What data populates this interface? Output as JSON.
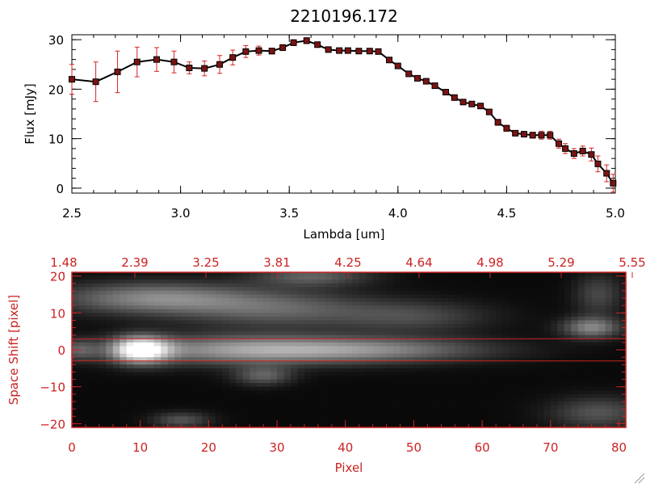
{
  "title": "2210196.172",
  "colors": {
    "background": "#ffffff",
    "axis": "#000000",
    "series": "#000000",
    "marker": "#7a1414",
    "errorbar": "#d62424",
    "accent_red": "#cc2222"
  },
  "chart_data": [
    {
      "type": "line",
      "title": "2210196.172",
      "xlabel": "Lambda [um]",
      "ylabel": "Flux [mJy]",
      "xlim": [
        2.5,
        5.0
      ],
      "ylim": [
        -1,
        31
      ],
      "xticks": [
        2.5,
        3.0,
        3.5,
        4.0,
        4.5,
        5.0
      ],
      "xtick_labels": [
        "2.5",
        "3.0",
        "3.5",
        "4.0",
        "4.5",
        "5.0"
      ],
      "yticks": [
        0,
        10,
        20,
        30
      ],
      "ytick_labels": [
        "0",
        "10",
        "20",
        "30"
      ],
      "grid": false,
      "series": [
        {
          "x": [
            2.5,
            2.61,
            2.71,
            2.8,
            2.89,
            2.97,
            3.04,
            3.11,
            3.18,
            3.24,
            3.3,
            3.36,
            3.42,
            3.47,
            3.52,
            3.58,
            3.63,
            3.68,
            3.73,
            3.77,
            3.82,
            3.87,
            3.91,
            3.96,
            4.0,
            4.05,
            4.09,
            4.13,
            4.17,
            4.22,
            4.26,
            4.3,
            4.34,
            4.38,
            4.42,
            4.46,
            4.5,
            4.54,
            4.58,
            4.62,
            4.66,
            4.7,
            4.74,
            4.77,
            4.81,
            4.85,
            4.89,
            4.92,
            4.96,
            4.99
          ],
          "y": [
            22.0,
            21.5,
            23.5,
            25.5,
            26.0,
            25.5,
            24.3,
            24.2,
            25.0,
            26.4,
            27.6,
            27.8,
            27.7,
            28.4,
            29.4,
            29.8,
            29.0,
            28.0,
            27.8,
            27.8,
            27.7,
            27.7,
            27.6,
            25.9,
            24.7,
            23.1,
            22.2,
            21.6,
            20.7,
            19.4,
            18.3,
            17.4,
            17.0,
            16.6,
            15.4,
            13.3,
            12.1,
            11.1,
            10.9,
            10.7,
            10.7,
            10.7,
            9.0,
            8.0,
            7.0,
            7.5,
            6.8,
            4.9,
            3.0,
            1.0
          ],
          "yerr": [
            3.0,
            4.0,
            4.2,
            3.0,
            2.4,
            2.2,
            1.2,
            1.5,
            1.8,
            1.5,
            1.2,
            0.9,
            0.6,
            0.6,
            0.6,
            0.6,
            0.5,
            0.5,
            0.4,
            0.4,
            0.4,
            0.4,
            0.4,
            0.4,
            0.5,
            0.5,
            0.5,
            0.5,
            0.5,
            0.5,
            0.5,
            0.5,
            0.5,
            0.5,
            0.5,
            0.6,
            0.6,
            0.5,
            0.5,
            0.6,
            0.8,
            0.8,
            0.9,
            1.0,
            1.0,
            1.0,
            1.3,
            1.6,
            1.7,
            1.8
          ]
        }
      ]
    },
    {
      "type": "heatmap",
      "xlabel": "Pixel",
      "ylabel": "Space Shift [pixel]",
      "xlim": [
        0,
        81
      ],
      "ylim": [
        -21,
        21
      ],
      "xticks": [
        0,
        10,
        20,
        30,
        40,
        50,
        60,
        70,
        80
      ],
      "xtick_labels": [
        "0",
        "10",
        "20",
        "30",
        "40",
        "50",
        "60",
        "70",
        "80"
      ],
      "yticks": [
        -20,
        -10,
        0,
        10,
        20
      ],
      "ytick_labels": [
        "−20",
        "−10",
        "0",
        "10",
        "20"
      ],
      "top_axis_labels": [
        "1.48",
        "2.39",
        "3.25",
        "3.81",
        "4.25",
        "4.64",
        "4.98",
        "5.29",
        "5.55"
      ],
      "aperture_lines": [
        3,
        -3
      ],
      "colormap": "grayscale",
      "features": [
        {
          "x": 10,
          "y": 0,
          "sx": 3,
          "sy": 2.5,
          "a": 1.0
        },
        {
          "x": 25,
          "y": 0,
          "sx": 12,
          "sy": 2.8,
          "a": 0.55
        },
        {
          "x": 45,
          "y": 0,
          "sx": 12,
          "sy": 2.4,
          "a": 0.42
        },
        {
          "x": 12,
          "y": 14,
          "sx": 10,
          "sy": 3,
          "a": 0.5
        },
        {
          "x": 30,
          "y": 11,
          "sx": 10,
          "sy": 3.5,
          "a": 0.35
        },
        {
          "x": 35,
          "y": 20,
          "sx": 6,
          "sy": 2,
          "a": 0.35
        },
        {
          "x": 50,
          "y": 9,
          "sx": 8,
          "sy": 3,
          "a": 0.25
        },
        {
          "x": 28,
          "y": -7,
          "sx": 3,
          "sy": 1.8,
          "a": 0.35
        },
        {
          "x": 16,
          "y": -19,
          "sx": 3,
          "sy": 1.5,
          "a": 0.3
        },
        {
          "x": 76,
          "y": 6,
          "sx": 3,
          "sy": 2,
          "a": 0.5
        },
        {
          "x": 77,
          "y": 15,
          "sx": 2.5,
          "sy": 4,
          "a": 0.25
        },
        {
          "x": 77,
          "y": -17,
          "sx": 5,
          "sy": 3,
          "a": 0.3
        },
        {
          "x": 1,
          "y": 0,
          "sx": 2,
          "sy": 2,
          "a": 0.3
        }
      ]
    }
  ]
}
